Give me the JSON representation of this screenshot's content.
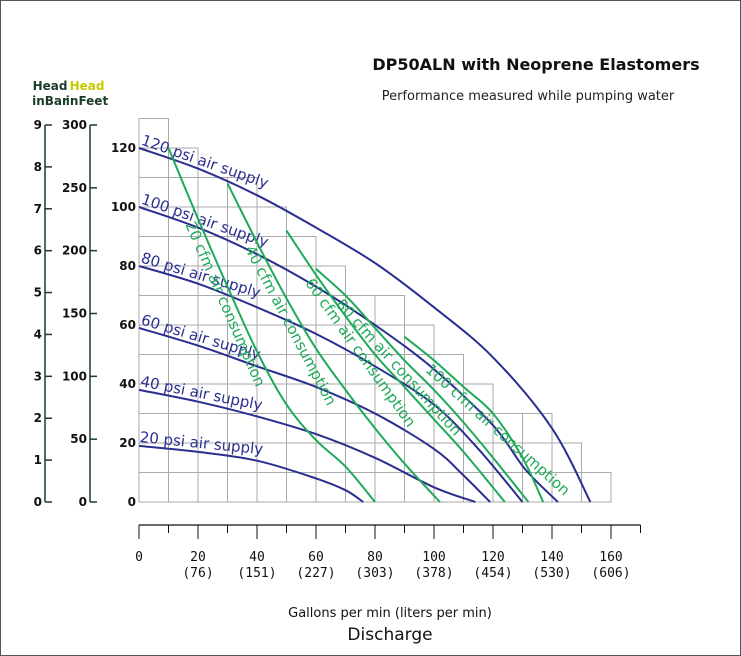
{
  "chart_data": {
    "type": "line",
    "title": "DP50ALN with Neoprene Elastomers",
    "subtitle": "Performance measured while pumping water",
    "xlabel": "Gallons per min (liters per min)",
    "xlabel2": "Discharge",
    "xlim": [
      0,
      170
    ],
    "ylim": [
      0,
      130
    ],
    "x_ticks": [
      {
        "value": 0,
        "label": "0",
        "sub": ""
      },
      {
        "value": 20,
        "label": "20",
        "sub": "(76)"
      },
      {
        "value": 40,
        "label": "40",
        "sub": "(151)"
      },
      {
        "value": 60,
        "label": "60",
        "sub": "(227)"
      },
      {
        "value": 80,
        "label": "80",
        "sub": "(303)"
      },
      {
        "value": 100,
        "label": "100",
        "sub": "(378)"
      },
      {
        "value": 120,
        "label": "120",
        "sub": "(454)"
      },
      {
        "value": 140,
        "label": "140",
        "sub": "(530)"
      },
      {
        "value": 160,
        "label": "160",
        "sub": "(606)"
      }
    ],
    "y_ticks": [
      0,
      20,
      40,
      60,
      80,
      100,
      120
    ],
    "feet_axis": {
      "title_1": "Head",
      "title_2": "inFeet",
      "max": 300,
      "ticks": [
        0,
        50,
        100,
        150,
        200,
        250,
        300
      ]
    },
    "bar_axis": {
      "title_1": "Head",
      "title_2": "inBar",
      "max": 9,
      "ticks": [
        0,
        1,
        2,
        3,
        4,
        5,
        6,
        7,
        8,
        9
      ]
    },
    "colors": {
      "pressure": "#2a2f8f",
      "air": "#1faa5a",
      "grid": "#aaaaaa",
      "feet_title": "#c9c900",
      "axis": "#1a3d2a"
    },
    "pressure_series": [
      {
        "name": "120 psi air supply",
        "points": [
          [
            0,
            120
          ],
          [
            20,
            113
          ],
          [
            40,
            104
          ],
          [
            60,
            93
          ],
          [
            80,
            81
          ],
          [
            100,
            66
          ],
          [
            120,
            49
          ],
          [
            140,
            25
          ],
          [
            153,
            0
          ]
        ]
      },
      {
        "name": "100 psi air supply",
        "points": [
          [
            0,
            100
          ],
          [
            20,
            93
          ],
          [
            40,
            84
          ],
          [
            60,
            73
          ],
          [
            80,
            60
          ],
          [
            100,
            45
          ],
          [
            120,
            26
          ],
          [
            131,
            11
          ],
          [
            142,
            0
          ]
        ]
      },
      {
        "name": "80 psi air supply",
        "points": [
          [
            0,
            80
          ],
          [
            20,
            74
          ],
          [
            40,
            66
          ],
          [
            60,
            57
          ],
          [
            80,
            46
          ],
          [
            100,
            33
          ],
          [
            115,
            18
          ],
          [
            130,
            0
          ]
        ]
      },
      {
        "name": "60 psi air supply",
        "points": [
          [
            0,
            59
          ],
          [
            20,
            53
          ],
          [
            40,
            46
          ],
          [
            60,
            39
          ],
          [
            80,
            30
          ],
          [
            100,
            18
          ],
          [
            110,
            9
          ],
          [
            119,
            0
          ]
        ]
      },
      {
        "name": "40 psi air supply",
        "points": [
          [
            0,
            38
          ],
          [
            20,
            34
          ],
          [
            40,
            29
          ],
          [
            60,
            23
          ],
          [
            80,
            15
          ],
          [
            100,
            5
          ],
          [
            114,
            0
          ]
        ]
      },
      {
        "name": "20 psi air supply",
        "points": [
          [
            0,
            19
          ],
          [
            20,
            17
          ],
          [
            40,
            14
          ],
          [
            60,
            8
          ],
          [
            70,
            4
          ],
          [
            76,
            0
          ]
        ]
      }
    ],
    "air_series": [
      {
        "name": "20 cfm air consumption",
        "points": [
          [
            10,
            120
          ],
          [
            20,
            96
          ],
          [
            30,
            73
          ],
          [
            40,
            51
          ],
          [
            50,
            33
          ],
          [
            60,
            21
          ],
          [
            70,
            12
          ],
          [
            80,
            0
          ]
        ]
      },
      {
        "name": "40 cfm air consumption",
        "points": [
          [
            30,
            108
          ],
          [
            40,
            88
          ],
          [
            50,
            69
          ],
          [
            60,
            52
          ],
          [
            70,
            38
          ],
          [
            80,
            25
          ],
          [
            90,
            13
          ],
          [
            102,
            0
          ]
        ]
      },
      {
        "name": "60 cfm air consumption",
        "points": [
          [
            50,
            92
          ],
          [
            60,
            77
          ],
          [
            70,
            63
          ],
          [
            80,
            50
          ],
          [
            90,
            39
          ],
          [
            100,
            28
          ],
          [
            110,
            17
          ],
          [
            124,
            0
          ]
        ]
      },
      {
        "name": "80 cfm air consumption",
        "points": [
          [
            60,
            79
          ],
          [
            70,
            70
          ],
          [
            80,
            59
          ],
          [
            90,
            48
          ],
          [
            100,
            38
          ],
          [
            110,
            27
          ],
          [
            120,
            15
          ],
          [
            132,
            0
          ]
        ]
      },
      {
        "name": "100 cfm air consumption",
        "points": [
          [
            90,
            56
          ],
          [
            100,
            48
          ],
          [
            110,
            39
          ],
          [
            120,
            30
          ],
          [
            130,
            15
          ],
          [
            137,
            0
          ]
        ]
      }
    ]
  }
}
